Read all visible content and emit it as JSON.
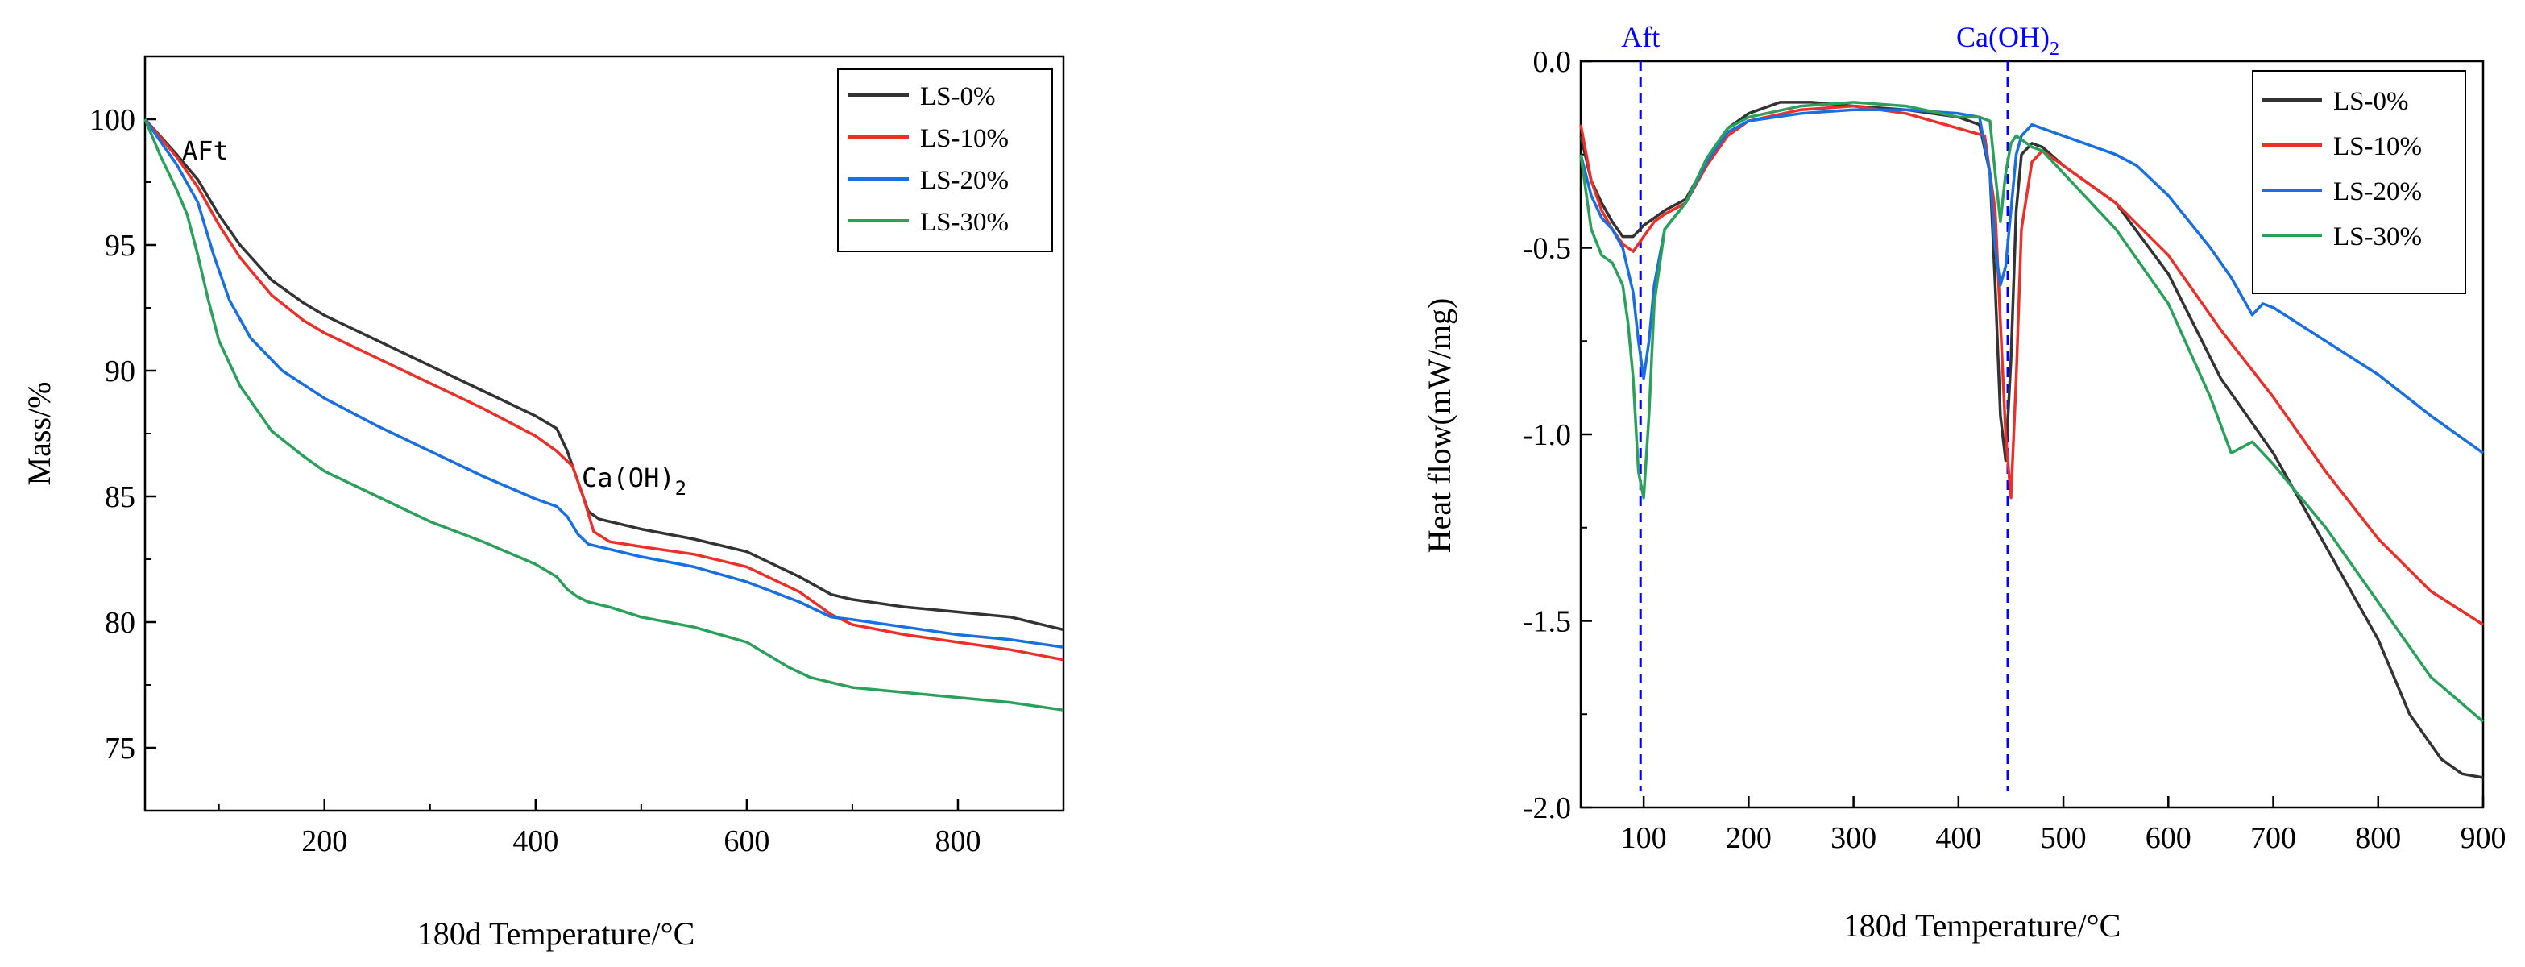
{
  "chart_data": [
    {
      "type": "line",
      "xlabel": "180d Temperature/°C",
      "ylabel": "Mass/%",
      "xlim": [
        30,
        900
      ],
      "ylim": [
        72.5,
        102.5
      ],
      "x_major_ticks": [
        200,
        400,
        600,
        800
      ],
      "x_minor_ticks": [
        100,
        300,
        500,
        700
      ],
      "y_major_ticks": [
        75,
        80,
        85,
        90,
        95,
        100
      ],
      "x_tick_labels": [
        "200",
        "400",
        "600",
        "800"
      ],
      "y_tick_labels": [
        "75",
        "80",
        "85",
        "90",
        "95",
        "100"
      ],
      "legend_position": "top-right",
      "annotations": [
        {
          "text": "AFt",
          "x": 65,
          "y": 99
        },
        {
          "text": "Ca(OH)",
          "subscript": "2",
          "x": 445,
          "y": 86.2
        }
      ],
      "series": [
        {
          "name": "LS-0%",
          "color": "#333333",
          "x": [
            30,
            60,
            80,
            100,
            120,
            150,
            180,
            200,
            250,
            300,
            350,
            400,
            420,
            430,
            440,
            450,
            460,
            480,
            500,
            550,
            600,
            650,
            680,
            700,
            750,
            800,
            850,
            900
          ],
          "y": [
            100,
            98.6,
            97.6,
            96.2,
            95,
            93.6,
            92.7,
            92.2,
            91.2,
            90.2,
            89.2,
            88.2,
            87.7,
            86.8,
            85.6,
            84.4,
            84.1,
            83.9,
            83.7,
            83.3,
            82.8,
            81.8,
            81.1,
            80.9,
            80.6,
            80.4,
            80.2,
            79.7
          ]
        },
        {
          "name": "LS-10%",
          "color": "#e8312a",
          "x": [
            30,
            60,
            80,
            100,
            120,
            150,
            180,
            200,
            250,
            300,
            350,
            400,
            420,
            435,
            445,
            455,
            470,
            500,
            550,
            600,
            650,
            680,
            700,
            750,
            800,
            850,
            900
          ],
          "y": [
            100,
            98.5,
            97.3,
            95.8,
            94.5,
            93,
            92,
            91.5,
            90.5,
            89.5,
            88.5,
            87.4,
            86.8,
            86.2,
            85,
            83.6,
            83.2,
            83,
            82.7,
            82.2,
            81.2,
            80.3,
            79.9,
            79.5,
            79.2,
            78.9,
            78.5
          ]
        },
        {
          "name": "LS-20%",
          "color": "#1a6fde",
          "x": [
            30,
            60,
            80,
            95,
            110,
            130,
            160,
            200,
            250,
            300,
            350,
            400,
            420,
            430,
            440,
            450,
            460,
            500,
            550,
            600,
            650,
            680,
            700,
            750,
            800,
            850,
            900
          ],
          "y": [
            100,
            98.2,
            96.7,
            94.6,
            92.8,
            91.3,
            90,
            88.9,
            87.8,
            86.8,
            85.8,
            84.9,
            84.6,
            84.2,
            83.5,
            83.1,
            83,
            82.6,
            82.2,
            81.6,
            80.8,
            80.2,
            80.1,
            79.8,
            79.5,
            79.3,
            79
          ]
        },
        {
          "name": "LS-30%",
          "color": "#2aa05a",
          "x": [
            30,
            45,
            60,
            70,
            80,
            90,
            100,
            120,
            150,
            180,
            200,
            250,
            300,
            350,
            400,
            420,
            430,
            440,
            450,
            470,
            500,
            550,
            600,
            640,
            660,
            680,
            700,
            750,
            800,
            850,
            900
          ],
          "y": [
            100,
            98.5,
            97.2,
            96.2,
            94.6,
            92.8,
            91.2,
            89.4,
            87.6,
            86.6,
            86,
            85,
            84,
            83.2,
            82.3,
            81.8,
            81.3,
            81,
            80.8,
            80.6,
            80.2,
            79.8,
            79.2,
            78.2,
            77.8,
            77.6,
            77.4,
            77.2,
            77,
            76.8,
            76.5
          ]
        }
      ]
    },
    {
      "type": "line",
      "xlabel": "180d Temperature/°C",
      "ylabel": "Heat flow(mW/mg)",
      "xlim": [
        40,
        900
      ],
      "ylim": [
        -2.0,
        0.0
      ],
      "x_major_ticks": [
        100,
        200,
        300,
        400,
        500,
        600,
        700,
        800,
        900
      ],
      "y_major_ticks": [
        -2.0,
        -1.5,
        -1.0,
        -0.5,
        0.0
      ],
      "x_tick_labels": [
        "100",
        "200",
        "300",
        "400",
        "500",
        "600",
        "700",
        "800",
        "900"
      ],
      "y_tick_labels": [
        "-2.0",
        "-1.5",
        "-1.0",
        "-0.5",
        "0.0"
      ],
      "legend_position": "top-right",
      "annotations": [
        {
          "text": "Aft",
          "x": 97,
          "color": "#0000ff"
        },
        {
          "text": "Ca(OH)",
          "subscript": "2",
          "x": 447,
          "color": "#0000ff"
        }
      ],
      "reference_lines": [
        {
          "x": 97,
          "style": "dashed",
          "color": "#0000ff"
        },
        {
          "x": 447,
          "style": "dashed",
          "color": "#0000ff"
        }
      ],
      "series": [
        {
          "name": "LS-0%",
          "color": "#333333",
          "x": [
            40,
            50,
            60,
            70,
            80,
            90,
            100,
            110,
            120,
            140,
            160,
            180,
            200,
            230,
            260,
            300,
            350,
            400,
            420,
            430,
            435,
            440,
            445,
            450,
            455,
            460,
            470,
            480,
            500,
            550,
            600,
            650,
            700,
            750,
            800,
            830,
            860,
            880,
            900
          ],
          "y": [
            -0.2,
            -0.32,
            -0.38,
            -0.43,
            -0.47,
            -0.47,
            -0.44,
            -0.42,
            -0.4,
            -0.37,
            -0.27,
            -0.18,
            -0.14,
            -0.11,
            -0.11,
            -0.12,
            -0.13,
            -0.15,
            -0.17,
            -0.3,
            -0.6,
            -0.95,
            -1.07,
            -0.8,
            -0.4,
            -0.25,
            -0.22,
            -0.23,
            -0.28,
            -0.38,
            -0.57,
            -0.85,
            -1.05,
            -1.3,
            -1.55,
            -1.75,
            -1.87,
            -1.91,
            -1.92
          ]
        },
        {
          "name": "LS-10%",
          "color": "#e8312a",
          "x": [
            40,
            50,
            60,
            70,
            80,
            90,
            100,
            110,
            120,
            140,
            160,
            180,
            200,
            250,
            300,
            350,
            400,
            425,
            435,
            440,
            445,
            450,
            455,
            460,
            470,
            480,
            500,
            550,
            600,
            650,
            700,
            750,
            800,
            850,
            900
          ],
          "y": [
            -0.17,
            -0.32,
            -0.4,
            -0.45,
            -0.49,
            -0.51,
            -0.47,
            -0.43,
            -0.41,
            -0.38,
            -0.28,
            -0.2,
            -0.16,
            -0.13,
            -0.12,
            -0.14,
            -0.18,
            -0.2,
            -0.4,
            -0.7,
            -1.0,
            -1.17,
            -0.85,
            -0.45,
            -0.27,
            -0.24,
            -0.28,
            -0.38,
            -0.52,
            -0.72,
            -0.9,
            -1.1,
            -1.28,
            -1.42,
            -1.51
          ]
        },
        {
          "name": "LS-20%",
          "color": "#1a6fde",
          "x": [
            40,
            50,
            60,
            70,
            80,
            90,
            95,
            100,
            105,
            110,
            120,
            140,
            160,
            180,
            200,
            250,
            300,
            350,
            400,
            420,
            430,
            435,
            440,
            445,
            450,
            455,
            460,
            470,
            480,
            500,
            550,
            570,
            600,
            640,
            660,
            680,
            690,
            700,
            750,
            800,
            850,
            900
          ],
          "y": [
            -0.25,
            -0.36,
            -0.42,
            -0.45,
            -0.5,
            -0.62,
            -0.75,
            -0.85,
            -0.75,
            -0.6,
            -0.45,
            -0.38,
            -0.27,
            -0.19,
            -0.16,
            -0.14,
            -0.13,
            -0.13,
            -0.14,
            -0.15,
            -0.3,
            -0.5,
            -0.6,
            -0.55,
            -0.4,
            -0.25,
            -0.2,
            -0.17,
            -0.18,
            -0.2,
            -0.25,
            -0.28,
            -0.36,
            -0.5,
            -0.58,
            -0.68,
            -0.65,
            -0.66,
            -0.75,
            -0.84,
            -0.95,
            -1.05
          ]
        },
        {
          "name": "LS-30%",
          "color": "#2aa05a",
          "x": [
            40,
            50,
            60,
            70,
            80,
            85,
            90,
            95,
            100,
            105,
            110,
            120,
            140,
            160,
            180,
            200,
            250,
            300,
            350,
            400,
            420,
            430,
            435,
            440,
            445,
            450,
            455,
            460,
            470,
            480,
            500,
            550,
            600,
            640,
            660,
            680,
            700,
            750,
            800,
            850,
            900
          ],
          "y": [
            -0.25,
            -0.45,
            -0.52,
            -0.54,
            -0.6,
            -0.7,
            -0.85,
            -1.1,
            -1.17,
            -0.95,
            -0.65,
            -0.45,
            -0.38,
            -0.26,
            -0.18,
            -0.15,
            -0.12,
            -0.11,
            -0.12,
            -0.15,
            -0.15,
            -0.16,
            -0.3,
            -0.43,
            -0.3,
            -0.22,
            -0.2,
            -0.21,
            -0.23,
            -0.24,
            -0.3,
            -0.45,
            -0.65,
            -0.9,
            -1.05,
            -1.02,
            -1.08,
            -1.25,
            -1.45,
            -1.65,
            -1.77
          ]
        }
      ]
    }
  ]
}
